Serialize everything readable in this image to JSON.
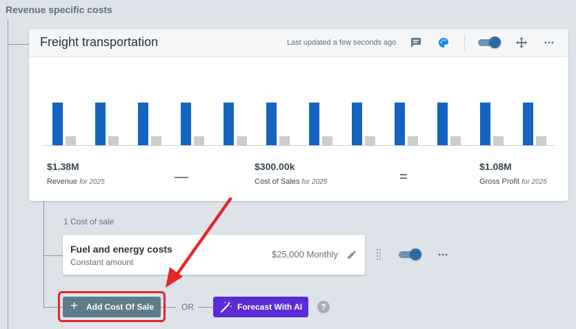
{
  "section": {
    "title": "Revenue specific costs"
  },
  "card": {
    "title": "Freight transportation",
    "last_updated": "Last updated a few seconds ago",
    "icons": [
      "comment-icon",
      "palette-icon",
      "toggle",
      "move-icon",
      "more-icon"
    ]
  },
  "chart_data": {
    "type": "bar",
    "categories": [
      "",
      "",
      "",
      "",
      "",
      "",
      "",
      "",
      "",
      "",
      "",
      ""
    ],
    "series": [
      {
        "values": [
          1.0,
          1.0,
          1.0,
          1.0,
          1.0,
          1.0,
          1.0,
          1.0,
          1.0,
          1.0,
          1.0,
          1.0
        ],
        "color": "#1565c0"
      },
      {
        "values": [
          0.21,
          0.21,
          0.21,
          0.21,
          0.21,
          0.21,
          0.21,
          0.21,
          0.21,
          0.21,
          0.21,
          0.21
        ],
        "color": "#cccccc"
      }
    ],
    "title": "",
    "xlabel": "",
    "ylabel": ""
  },
  "metrics": {
    "revenue": {
      "value": "$1.38M",
      "label": "Revenue",
      "period": "for 2025"
    },
    "minus": "—",
    "cost_of_sales": {
      "value": "$300.00k",
      "label": "Cost of Sales",
      "period": "for 2025"
    },
    "equals": "=",
    "gross_profit": {
      "value": "$1.08M",
      "label": "Gross Profit",
      "period": "for 2025"
    }
  },
  "cost_section": {
    "count_label": "1 Cost of sale",
    "items": [
      {
        "name": "Fuel and energy costs",
        "type": "Constant amount",
        "amount": "$25,000 Monthly"
      }
    ]
  },
  "actions": {
    "add_label": "Add Cost Of Sale",
    "or_label": "OR",
    "ai_label": "Forecast With AI",
    "help": "?"
  },
  "colors": {
    "primary_bar": "#1565c0",
    "secondary_bar": "#cccccc",
    "highlight": "#e4262a",
    "ai_button": "#5b2bd4",
    "add_button": "#5f7c8a"
  }
}
